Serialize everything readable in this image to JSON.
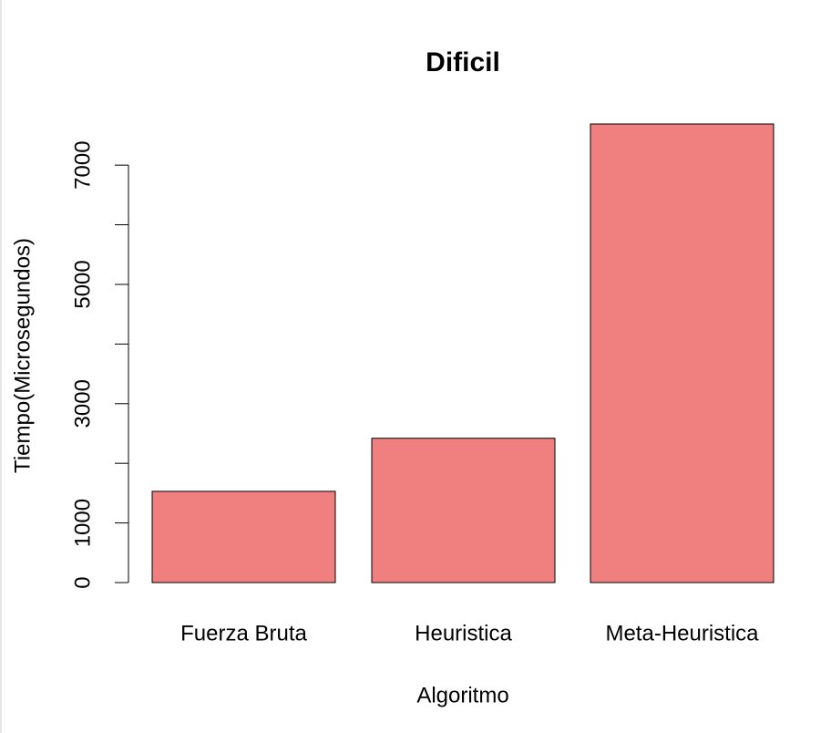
{
  "chart_data": {
    "type": "bar",
    "title": "Dificil",
    "x_label": "Algoritmo",
    "y_label": "Tiempo(Microsegundos)",
    "categories": [
      "Fuerza Bruta",
      "Heuristica",
      "Meta-Heuristica"
    ],
    "values": [
      1530,
      2420,
      7690
    ],
    "color": "#f08080",
    "ylim": [
      0,
      7690
    ],
    "yticks": [
      0,
      1000,
      3000,
      5000,
      7000
    ],
    "minor_yticks": [
      2000,
      4000,
      6000
    ]
  }
}
